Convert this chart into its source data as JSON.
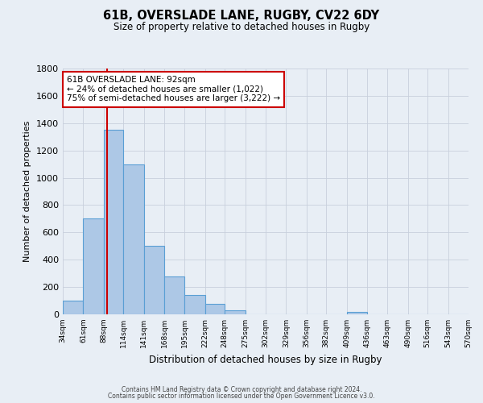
{
  "title": "61B, OVERSLADE LANE, RUGBY, CV22 6DY",
  "subtitle": "Size of property relative to detached houses in Rugby",
  "xlabel": "Distribution of detached houses by size in Rugby",
  "ylabel": "Number of detached properties",
  "bin_edges": [
    34,
    61,
    88,
    114,
    141,
    168,
    195,
    222,
    248,
    275,
    302,
    329,
    356,
    382,
    409,
    436,
    463,
    490,
    516,
    543,
    570
  ],
  "bar_heights": [
    100,
    700,
    1350,
    1100,
    500,
    275,
    140,
    75,
    30,
    0,
    0,
    0,
    0,
    0,
    15,
    0,
    0,
    0,
    0,
    0
  ],
  "bar_color": "#adc8e6",
  "bar_edge_color": "#5a9fd4",
  "grid_color": "#c8d0dc",
  "bg_color": "#e8eef5",
  "property_size": 92,
  "red_line_color": "#cc0000",
  "annotation_line1": "61B OVERSLADE LANE: 92sqm",
  "annotation_line2": "← 24% of detached houses are smaller (1,022)",
  "annotation_line3": "75% of semi-detached houses are larger (3,222) →",
  "annotation_box_color": "#ffffff",
  "annotation_box_edge": "#cc0000",
  "ylim": [
    0,
    1800
  ],
  "yticks": [
    0,
    200,
    400,
    600,
    800,
    1000,
    1200,
    1400,
    1600,
    1800
  ],
  "footer_line1": "Contains HM Land Registry data © Crown copyright and database right 2024.",
  "footer_line2": "Contains public sector information licensed under the Open Government Licence v3.0."
}
